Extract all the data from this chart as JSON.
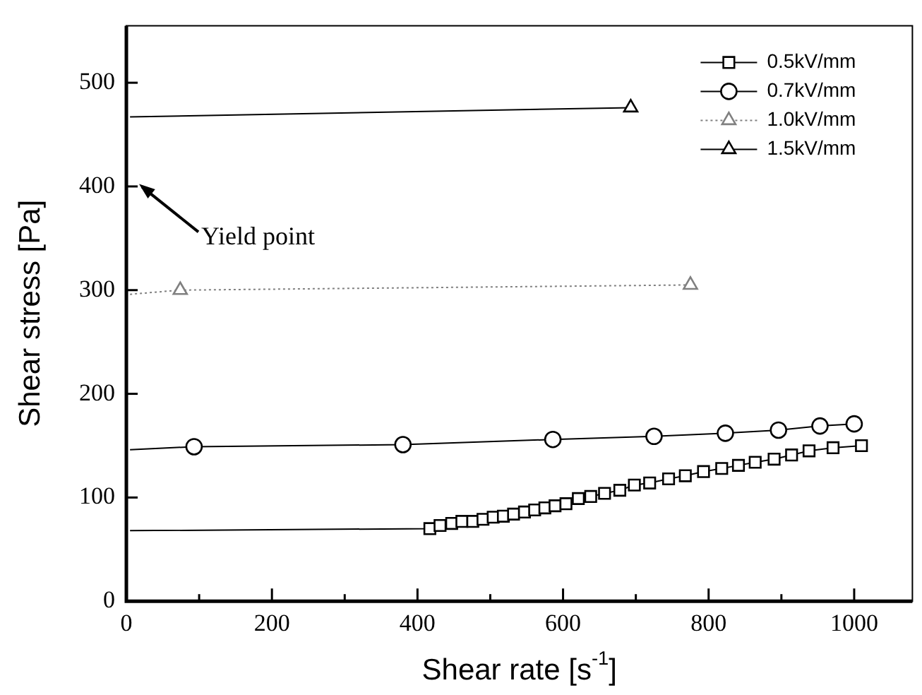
{
  "chart_data": {
    "type": "line",
    "xlabel": "Shear rate [s$^{-1}$]",
    "ylabel": "Shear stress [Pa]",
    "xlim": [
      0,
      1080
    ],
    "xticks": [
      0,
      {
        "value": 100,
        "label": null
      },
      200,
      {
        "value": 300,
        "label": null
      },
      400,
      {
        "value": 500,
        "label": null
      },
      600,
      {
        "value": 700,
        "label": null
      },
      800,
      {
        "value": 900,
        "label": null
      },
      1000
    ],
    "ylim": [
      0,
      555
    ],
    "yticks": [
      0,
      100,
      200,
      300,
      400,
      500
    ],
    "grid": false,
    "legend": "top right",
    "annotations": [
      "Yield point"
    ],
    "series": [
      {
        "name": "0.5kV/mm",
        "color": "#000000",
        "marker": "square",
        "line_style": "solid",
        "x": [
          5,
          417,
          431,
          447,
          461,
          476,
          490,
          504,
          518,
          532,
          547,
          561,
          575,
          589,
          604,
          621,
          638,
          657,
          678,
          698,
          719,
          745,
          768,
          793,
          818,
          841,
          864,
          890,
          914,
          938,
          971,
          1010
        ],
        "values": [
          68,
          70,
          73,
          75,
          77,
          77,
          79,
          81,
          82,
          84,
          86,
          88,
          90,
          92,
          94,
          99,
          101,
          104,
          107,
          112,
          114,
          118,
          121,
          125,
          128,
          131,
          134,
          137,
          141,
          145,
          148,
          150
        ]
      },
      {
        "name": "0.7kV/mm",
        "color": "#000000",
        "marker": "circle",
        "line_style": "solid",
        "x": [
          5,
          93,
          380,
          586,
          725,
          823,
          896,
          953,
          1000
        ],
        "values": [
          146,
          149,
          151,
          156,
          159,
          162,
          165,
          169,
          171
        ]
      },
      {
        "name": "1.0kV/mm",
        "color": "#808080",
        "marker": "triangle",
        "line_style": "dotted",
        "x": [
          5,
          74,
          775
        ],
        "values": [
          296,
          300,
          305
        ]
      },
      {
        "name": "1.5kV/mm",
        "color": "#000000",
        "marker": "triangle",
        "line_style": "solid",
        "x": [
          5,
          693
        ],
        "values": [
          467,
          476
        ]
      }
    ]
  }
}
